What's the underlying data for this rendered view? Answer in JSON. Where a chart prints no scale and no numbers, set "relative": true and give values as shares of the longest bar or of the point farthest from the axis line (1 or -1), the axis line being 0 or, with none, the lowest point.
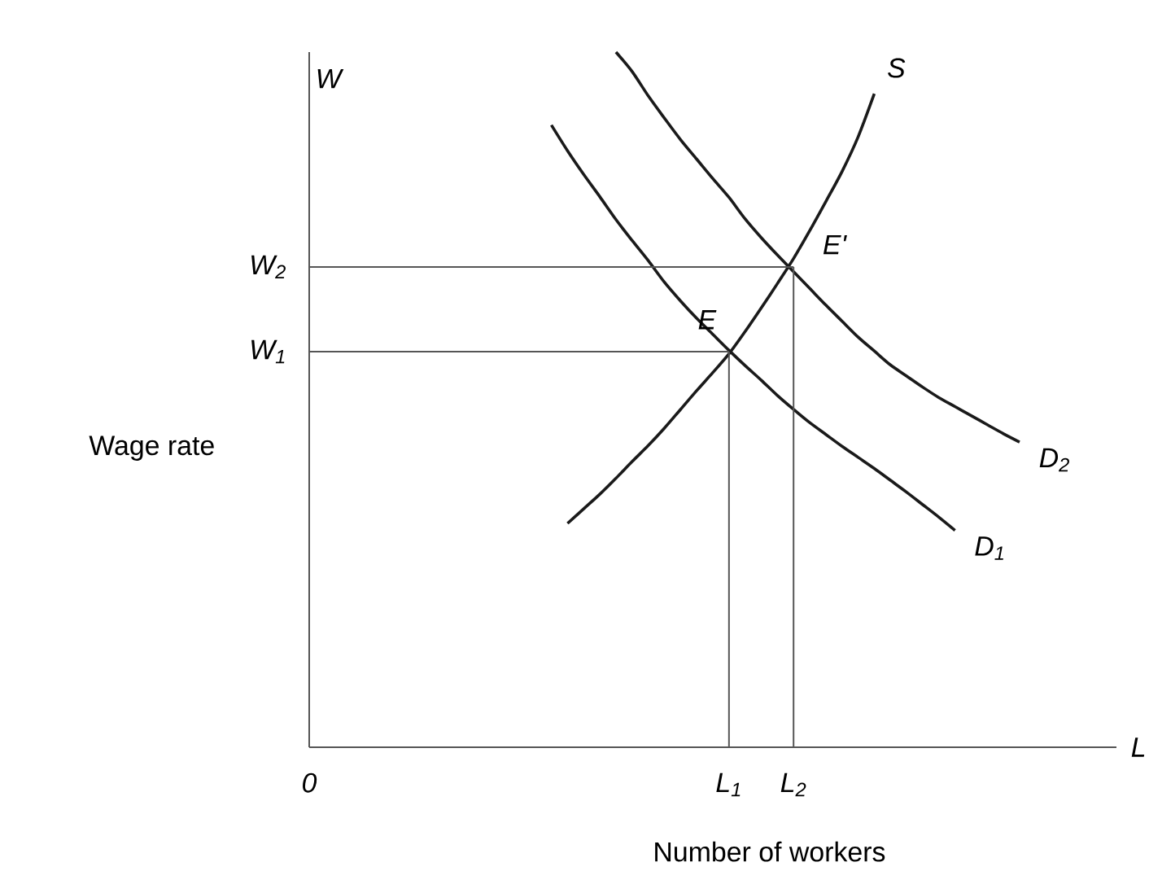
{
  "chart_data": {
    "type": "line",
    "relative": true,
    "marker": "none",
    "xlabel": "Number of workers",
    "ylabel": "Wage rate",
    "categories": [
      "0",
      null,
      null,
      null,
      null,
      null,
      null,
      null,
      null,
      null,
      null,
      null,
      null,
      null,
      null,
      null,
      null,
      null,
      null,
      null,
      null,
      null,
      null,
      null,
      null,
      null,
      "L$_{1}$",
      null,
      null,
      null,
      "L$_{2}$",
      null,
      null,
      null,
      null,
      null,
      null,
      null,
      null,
      null,
      null,
      null,
      null,
      null,
      null,
      null,
      null,
      null,
      null,
      null,
      null
    ],
    "series": [
      {
        "name": "S",
        "color": "#1a1a1a",
        "values": [
          null,
          null,
          null,
          null,
          null,
          null,
          null,
          null,
          null,
          null,
          null,
          null,
          null,
          null,
          null,
          null,
          0.322,
          0.343,
          0.364,
          0.387,
          0.411,
          0.434,
          0.459,
          0.486,
          0.513,
          0.539,
          0.566,
          0.598,
          0.632,
          0.667,
          0.703,
          0.743,
          0.785,
          0.828,
          0.878,
          0.94,
          null,
          null,
          null,
          null,
          null,
          null,
          null,
          null,
          null,
          null,
          null,
          null,
          null,
          null,
          null
        ]
      },
      {
        "name": "D$_{1}$",
        "color": "#1a1a1a",
        "values": [
          null,
          null,
          null,
          null,
          null,
          null,
          null,
          null,
          null,
          null,
          null,
          null,
          null,
          null,
          null,
          0.895,
          0.858,
          0.824,
          0.792,
          0.759,
          0.729,
          0.7,
          0.669,
          0.642,
          0.617,
          0.594,
          0.571,
          0.549,
          0.528,
          0.506,
          0.486,
          0.467,
          0.45,
          0.433,
          0.417,
          0.401,
          0.384,
          0.367,
          0.349,
          0.331,
          0.312,
          null,
          null,
          null,
          null,
          null,
          null,
          null,
          null,
          null,
          null
        ]
      },
      {
        "name": "D$_{2}$",
        "color": "#1a1a1a",
        "values": [
          null,
          null,
          null,
          null,
          null,
          null,
          null,
          null,
          null,
          null,
          null,
          null,
          null,
          null,
          null,
          null,
          null,
          null,
          null,
          1.0,
          0.972,
          0.937,
          0.905,
          0.874,
          0.846,
          0.818,
          0.791,
          0.76,
          0.733,
          0.708,
          0.684,
          0.66,
          0.636,
          0.613,
          0.59,
          0.57,
          0.55,
          0.534,
          0.518,
          0.503,
          0.49,
          0.477,
          0.464,
          0.451,
          0.439,
          null,
          null,
          null,
          null,
          null,
          null
        ]
      },
      {
        "name": "W$_{1}$",
        "color": "#555555",
        "values": [
          0.569,
          0.569,
          0.569,
          0.569,
          0.569,
          0.569,
          0.569,
          0.569,
          0.569,
          0.569,
          0.569,
          0.569,
          0.569,
          0.569,
          0.569,
          0.569,
          0.569,
          0.569,
          0.569,
          0.569,
          0.569,
          0.569,
          0.569,
          0.569,
          0.569,
          0.569,
          0.569,
          null,
          null,
          null,
          null,
          null,
          null,
          null,
          null,
          null,
          null,
          null,
          null,
          null,
          null,
          null,
          null,
          null,
          null,
          null,
          null,
          null,
          null,
          null,
          null
        ]
      },
      {
        "name": "W$_{2}$",
        "color": "#555555",
        "values": [
          0.691,
          0.691,
          0.691,
          0.691,
          0.691,
          0.691,
          0.691,
          0.691,
          0.691,
          0.691,
          0.691,
          0.691,
          0.691,
          0.691,
          0.691,
          0.691,
          0.691,
          0.691,
          0.691,
          0.691,
          0.691,
          0.691,
          0.691,
          0.691,
          0.691,
          0.691,
          0.691,
          0.691,
          0.691,
          0.691,
          0.691,
          null,
          null,
          null,
          null,
          null,
          null,
          null,
          null,
          null,
          null,
          null,
          null,
          null,
          null,
          null,
          null,
          null,
          null,
          null,
          null
        ]
      },
      {
        "type": "bar",
        "color": "#555555",
        "values": [
          null,
          null,
          null,
          null,
          null,
          null,
          null,
          null,
          null,
          null,
          null,
          null,
          null,
          null,
          null,
          null,
          null,
          null,
          null,
          null,
          null,
          null,
          null,
          null,
          null,
          null,
          0.569,
          null,
          null,
          null,
          0.691,
          null,
          null,
          null,
          null,
          null,
          null,
          null,
          null,
          null,
          null,
          null,
          null,
          null,
          null,
          null,
          null,
          null,
          null,
          null,
          null
        ]
      }
    ],
    "annotations": [
      "W",
      "L",
      {
        "text": "E",
        "x": "L$_{1}$",
        "y": 0.569
      },
      {
        "text": "E'",
        "x": "L$_{2}$",
        "y": 0.691
      }
    ]
  }
}
